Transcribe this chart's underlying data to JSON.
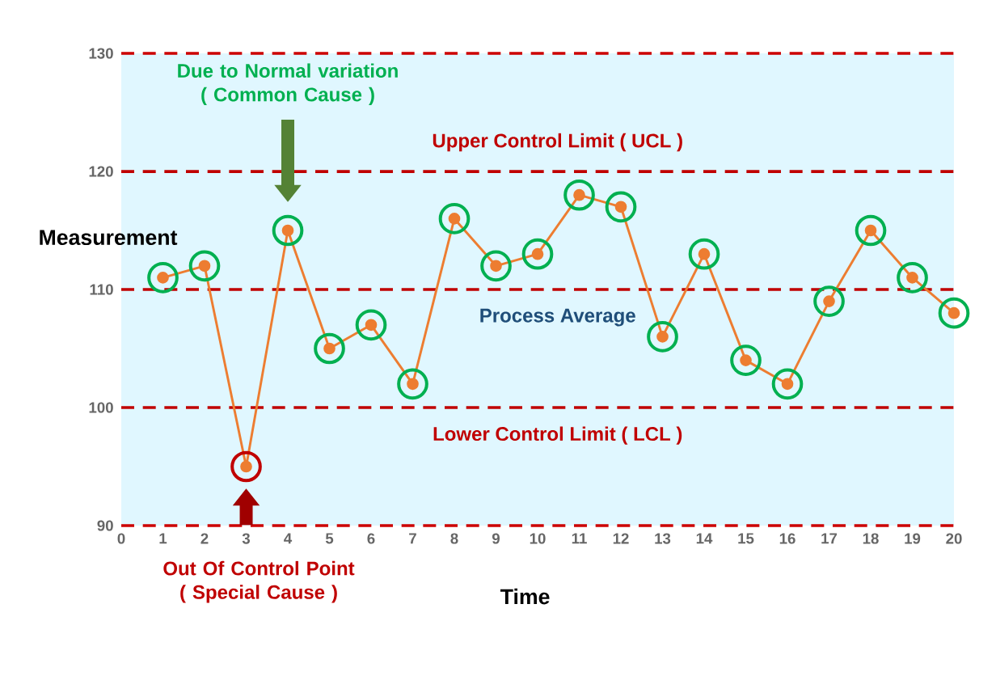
{
  "chart_data": {
    "type": "line",
    "xlabel": "Time",
    "ylabel": "Measurement",
    "x": [
      1,
      2,
      3,
      4,
      5,
      6,
      7,
      8,
      9,
      10,
      11,
      12,
      13,
      14,
      15,
      16,
      17,
      18,
      19,
      20
    ],
    "series": [
      {
        "color": "#ed7d31",
        "colors": [
          "#00b050",
          "#00b050",
          "#c00000",
          "#00b050",
          "#00b050",
          "#00b050",
          "#00b050",
          "#00b050",
          "#00b050",
          "#00b050",
          "#00b050",
          "#00b050",
          "#00b050",
          "#00b050",
          "#00b050",
          "#00b050",
          "#00b050",
          "#00b050",
          "#00b050",
          "#00b050"
        ],
        "values": [
          111,
          112,
          95,
          115,
          105,
          107,
          102,
          116,
          112,
          113,
          118,
          117,
          106,
          113,
          104,
          102,
          109,
          115,
          111,
          108
        ]
      }
    ],
    "xlim": [
      0,
      20
    ],
    "ylim": [
      90,
      130
    ],
    "xticks": [
      0,
      1,
      2,
      3,
      4,
      5,
      6,
      7,
      8,
      9,
      10,
      11,
      12,
      13,
      14,
      15,
      16,
      17,
      18,
      19,
      20
    ],
    "yticks": [
      90,
      100,
      110,
      120,
      130
    ],
    "marker": "circle",
    "ref_lines": [
      {
        "axis": "y",
        "value": 120,
        "label": "Upper Control Limit ( UCL )",
        "color": "#c00000",
        "line_style": "dashed"
      },
      {
        "axis": "y",
        "value": 110,
        "label": "Process Average",
        "color": "#c00000",
        "line_style": "dashed"
      },
      {
        "axis": "y",
        "value": 100,
        "label": "Lower Control Limit ( LCL )",
        "color": "#c00000",
        "line_style": "dashed"
      }
    ],
    "annotations": [
      "Due to Normal variation ( Common Cause )",
      "Out Of Control Point ( Special Cause )"
    ]
  }
}
